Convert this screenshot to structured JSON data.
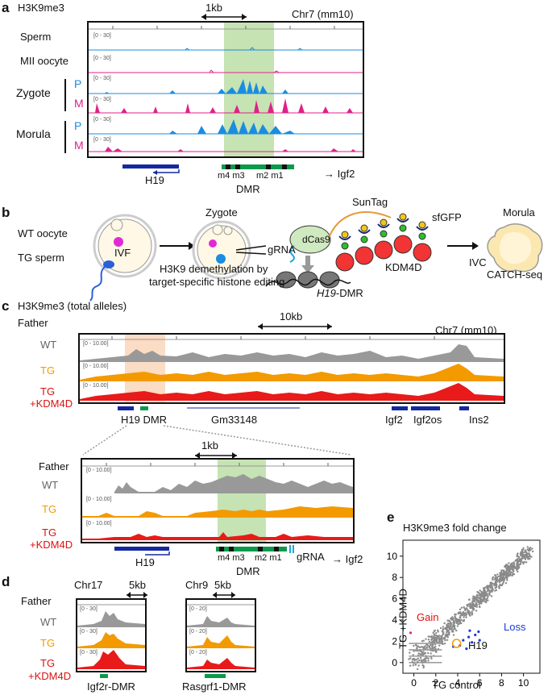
{
  "panel_a": {
    "label": "a",
    "title": "H3K9me3",
    "scale": "1kb",
    "chrom": "Chr7 (mm10)",
    "tracks": [
      "Sperm",
      "MII oocyte",
      "Zygote",
      "Morula"
    ],
    "p": "P",
    "m": "M",
    "range": "[0 - 30]",
    "genes": {
      "h19": "H19",
      "dmr": "DMR",
      "markers": "m4 m3",
      "markers2": "m2 m1",
      "igf2": "→ Igf2"
    }
  },
  "panel_b": {
    "label": "b",
    "wt_oocyte": "WT oocyte",
    "tg_sperm": "TG sperm",
    "ivf": "IVF",
    "zygote": "Zygote",
    "h3k9_line1": "H3K9 demethylation by",
    "h3k9_line2": "target-specific histone editing",
    "gRNA": "gRNA",
    "dcas9": "dCas9",
    "suntag": "SunTag",
    "sfgfp": "sfGFP",
    "kdm4d": "KDM4D",
    "h19dmr_italic": "H19",
    "h19dmr_rest": "-DMR",
    "ivc": "IVC",
    "morula": "Morula",
    "catch": "CATCH-seq"
  },
  "panel_c": {
    "label": "c",
    "title": "H3K9me3 (total alleles)",
    "scale": "10kb",
    "chrom": "Chr7 (mm10)",
    "father": "Father",
    "wt": "WT",
    "tg": "TG",
    "tg_kdm4d_1": "TG",
    "tg_kdm4d_2": "+KDM4D",
    "range": "[0 - 10.00]",
    "genes": {
      "h19dmr": "H19 DMR",
      "gm": "Gm33148",
      "igf2": "Igf2",
      "igf2os": "Igf2os",
      "ins2": "Ins2"
    },
    "zoom": {
      "scale": "1kb",
      "range": "[0 - 10.00]",
      "h19": "H19",
      "dmr": "DMR",
      "markers": "m4 m3",
      "markers2": "m2 m1",
      "grna": "gRNA",
      "igf2": "→ Igf2"
    }
  },
  "panel_d": {
    "label": "d",
    "father": "Father",
    "wt": "WT",
    "tg": "TG",
    "tg_kdm4d_1": "TG",
    "tg_kdm4d_2": "+KDM4D",
    "left": {
      "chrom": "Chr17",
      "scale": "5kb",
      "range": "[0 - 30]",
      "name": "Igf2r-DMR"
    },
    "right": {
      "chrom": "Chr9",
      "scale": "5kb",
      "range": "[0 - 20]",
      "name": "Rasgrf1-DMR"
    }
  },
  "panel_e": {
    "label": "e",
    "chart_data": {
      "type": "scatter",
      "title": "H3K9me3 fold change",
      "xlabel": "TG control",
      "ylabel": "TG +KDM4D",
      "xlim": [
        -1,
        11.5
      ],
      "ylim": [
        -1,
        11.5
      ],
      "xticks": [
        "0",
        "2",
        "4",
        "6",
        "8",
        "10"
      ],
      "yticks": [
        "0",
        "2",
        "4",
        "6",
        "8",
        "10"
      ],
      "annotations": {
        "gain": "Gain",
        "loss": "Loss",
        "h19": "H19"
      },
      "highlight_point": {
        "x": 3.9,
        "y": 1.8
      },
      "loss_points": [
        [
          4.2,
          1.6
        ],
        [
          4.5,
          2.1
        ],
        [
          5.0,
          2.4
        ],
        [
          5.3,
          1.9
        ],
        [
          5.6,
          2.6
        ],
        [
          5.9,
          2.9
        ],
        [
          4.8,
          1.3
        ],
        [
          3.6,
          1.5
        ],
        [
          5.1,
          3.0
        ],
        [
          6.0,
          2.1
        ]
      ],
      "gain_points": [
        [
          -0.3,
          2.8
        ]
      ]
    }
  }
}
